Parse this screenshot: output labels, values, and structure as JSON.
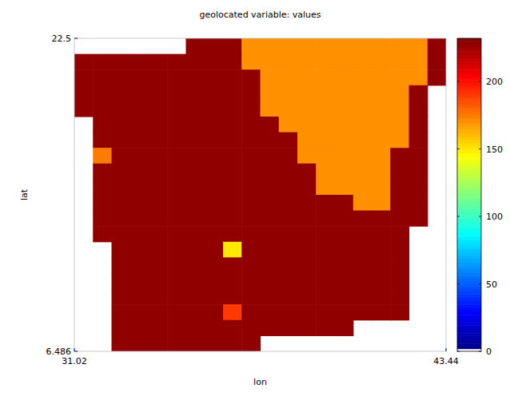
{
  "chart_data": {
    "type": "heatmap",
    "title": "geolocated variable: values",
    "x_label": "lon",
    "y_label": "lat",
    "xlim": [
      31.02,
      43.44
    ],
    "ylim": [
      6.486,
      22.5
    ],
    "xticks": [
      31.02,
      43.44
    ],
    "yticks": [
      6.486,
      22.5
    ],
    "colorbar": {
      "range": [
        0,
        232
      ],
      "ticks": [
        0,
        50,
        100,
        150,
        200
      ]
    },
    "z": [
      [
        null,
        null,
        null,
        null,
        null,
        null,
        228,
        228,
        228,
        170,
        170,
        170,
        170,
        170,
        170,
        170,
        170,
        170,
        170,
        228
      ],
      [
        228,
        228,
        228,
        228,
        228,
        228,
        228,
        228,
        228,
        170,
        170,
        170,
        170,
        170,
        170,
        170,
        170,
        170,
        170,
        228
      ],
      [
        228,
        228,
        228,
        228,
        228,
        228,
        228,
        228,
        228,
        228,
        170,
        170,
        170,
        170,
        170,
        170,
        170,
        170,
        170,
        228
      ],
      [
        228,
        228,
        228,
        228,
        228,
        228,
        228,
        228,
        228,
        228,
        170,
        170,
        170,
        170,
        170,
        170,
        170,
        170,
        228,
        null
      ],
      [
        228,
        228,
        228,
        228,
        228,
        228,
        228,
        228,
        228,
        228,
        170,
        170,
        170,
        170,
        170,
        170,
        170,
        170,
        228,
        null
      ],
      [
        null,
        228,
        228,
        228,
        228,
        228,
        228,
        228,
        228,
        228,
        228,
        170,
        170,
        170,
        170,
        170,
        170,
        170,
        228,
        null
      ],
      [
        null,
        228,
        228,
        228,
        228,
        228,
        228,
        228,
        228,
        228,
        228,
        228,
        170,
        170,
        170,
        170,
        170,
        170,
        228,
        null
      ],
      [
        null,
        175,
        228,
        228,
        228,
        228,
        228,
        228,
        228,
        228,
        228,
        228,
        170,
        170,
        170,
        170,
        170,
        228,
        228,
        null
      ],
      [
        null,
        228,
        228,
        228,
        228,
        228,
        228,
        228,
        228,
        228,
        228,
        228,
        228,
        170,
        170,
        170,
        170,
        228,
        228,
        null
      ],
      [
        null,
        228,
        228,
        228,
        228,
        228,
        228,
        228,
        228,
        228,
        228,
        228,
        228,
        170,
        170,
        170,
        170,
        228,
        228,
        null
      ],
      [
        null,
        228,
        228,
        228,
        228,
        228,
        228,
        228,
        228,
        228,
        228,
        228,
        228,
        228,
        228,
        170,
        170,
        228,
        228,
        null
      ],
      [
        null,
        228,
        228,
        228,
        228,
        228,
        228,
        228,
        228,
        228,
        228,
        228,
        228,
        228,
        228,
        228,
        228,
        228,
        228,
        null
      ],
      [
        null,
        228,
        228,
        228,
        228,
        228,
        228,
        228,
        228,
        228,
        228,
        228,
        228,
        228,
        228,
        228,
        228,
        228,
        null,
        null
      ],
      [
        null,
        null,
        228,
        228,
        228,
        228,
        228,
        228,
        150,
        228,
        228,
        228,
        228,
        228,
        228,
        228,
        228,
        228,
        null,
        null
      ],
      [
        null,
        null,
        228,
        228,
        228,
        228,
        228,
        228,
        228,
        228,
        228,
        228,
        228,
        228,
        228,
        228,
        228,
        228,
        null,
        null
      ],
      [
        null,
        null,
        228,
        228,
        228,
        228,
        228,
        228,
        228,
        228,
        228,
        228,
        228,
        228,
        228,
        228,
        228,
        228,
        null,
        null
      ],
      [
        null,
        null,
        228,
        228,
        228,
        228,
        228,
        228,
        228,
        228,
        228,
        228,
        228,
        228,
        228,
        228,
        228,
        228,
        null,
        null
      ],
      [
        null,
        null,
        228,
        228,
        228,
        228,
        228,
        228,
        190,
        228,
        228,
        228,
        228,
        228,
        228,
        228,
        228,
        228,
        null,
        null
      ],
      [
        null,
        null,
        228,
        228,
        228,
        228,
        228,
        228,
        228,
        228,
        228,
        228,
        228,
        228,
        228,
        null,
        null,
        null,
        null,
        null
      ],
      [
        null,
        null,
        228,
        228,
        228,
        228,
        228,
        228,
        228,
        228,
        null,
        null,
        null,
        null,
        null,
        null,
        null,
        null,
        null,
        null
      ]
    ]
  }
}
